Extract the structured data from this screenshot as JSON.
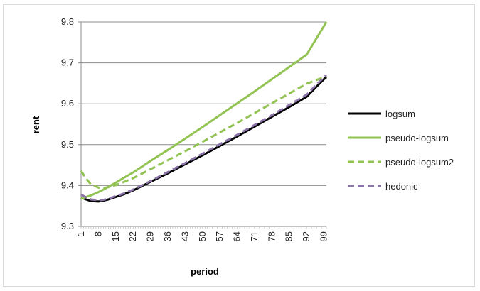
{
  "chart_data": {
    "type": "line",
    "title": "",
    "xlabel": "period",
    "ylabel": "rent",
    "ylim": [
      9.3,
      9.8
    ],
    "yticks": [
      "9.3",
      "9.4",
      "9.5",
      "9.6",
      "9.7",
      "9.8"
    ],
    "xticks": [
      "1",
      "8",
      "15",
      "22",
      "29",
      "36",
      "43",
      "50",
      "57",
      "64",
      "71",
      "78",
      "85",
      "92",
      "99"
    ],
    "xlim": [
      1,
      100
    ],
    "grid": true,
    "legend_position": "right",
    "series": [
      {
        "name": "logsum",
        "color": "#000000",
        "dash": "solid",
        "x": [
          1,
          3,
          5,
          8,
          10,
          12,
          15,
          18,
          22,
          29,
          36,
          43,
          50,
          57,
          64,
          71,
          78,
          85,
          92,
          99,
          100
        ],
        "values": [
          9.371,
          9.366,
          9.362,
          9.361,
          9.363,
          9.366,
          9.372,
          9.378,
          9.388,
          9.409,
          9.43,
          9.452,
          9.474,
          9.497,
          9.52,
          9.544,
          9.568,
          9.592,
          9.617,
          9.66,
          9.665
        ]
      },
      {
        "name": "pseudo-logsum",
        "color": "#92c353",
        "dash": "solid",
        "x": [
          1,
          3,
          5,
          8,
          10,
          12,
          15,
          18,
          22,
          29,
          36,
          43,
          50,
          57,
          64,
          71,
          78,
          85,
          92,
          99,
          100
        ],
        "values": [
          9.368,
          9.372,
          9.376,
          9.384,
          9.39,
          9.397,
          9.407,
          9.418,
          9.432,
          9.46,
          9.487,
          9.515,
          9.543,
          9.572,
          9.601,
          9.63,
          9.66,
          9.69,
          9.72,
          9.79,
          9.8
        ]
      },
      {
        "name": "pseudo-logsum2",
        "color": "#92c353",
        "dash": "dashed",
        "x": [
          1,
          3,
          5,
          8,
          10,
          12,
          15,
          18,
          22,
          29,
          36,
          43,
          50,
          57,
          64,
          71,
          78,
          85,
          92,
          99,
          100
        ],
        "values": [
          9.436,
          9.417,
          9.403,
          9.395,
          9.394,
          9.396,
          9.401,
          9.408,
          9.418,
          9.44,
          9.462,
          9.484,
          9.507,
          9.53,
          9.553,
          9.577,
          9.601,
          9.625,
          9.649,
          9.665,
          9.668
        ]
      },
      {
        "name": "hedonic",
        "color": "#8b74a8",
        "dash": "dashed",
        "x": [
          1,
          3,
          5,
          8,
          10,
          12,
          15,
          18,
          22,
          29,
          36,
          43,
          50,
          57,
          64,
          71,
          78,
          85,
          92,
          99,
          100
        ],
        "values": [
          9.378,
          9.371,
          9.366,
          9.364,
          9.365,
          9.368,
          9.374,
          9.38,
          9.39,
          9.411,
          9.433,
          9.455,
          9.478,
          9.501,
          9.524,
          9.548,
          9.572,
          9.597,
          9.622,
          9.665,
          9.67
        ]
      }
    ]
  }
}
